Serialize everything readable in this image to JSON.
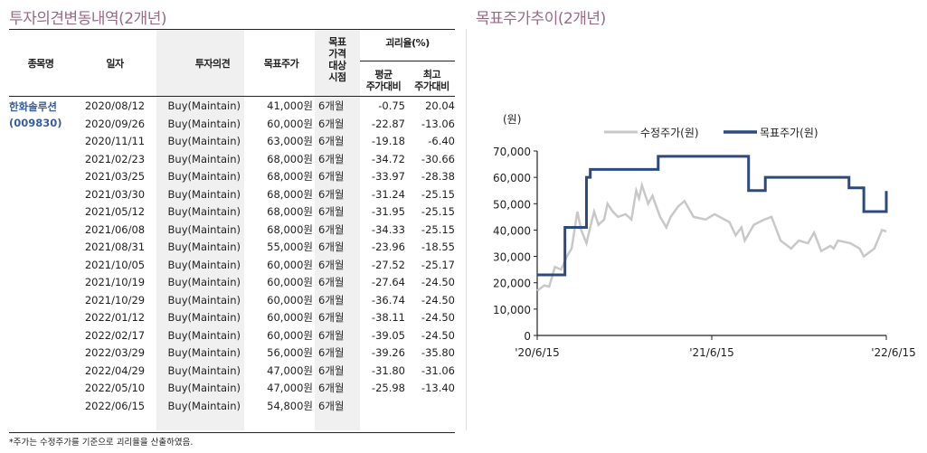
{
  "left": {
    "title": "투자의견변동내역(2개년)",
    "headers": {
      "stock": "종목명",
      "date": "일자",
      "opinion": "투자의견",
      "target": "목표주가",
      "horizon": "목표\n가격\n대상\n시점",
      "gap": "괴리율(%)",
      "avg": "평균\n주가대비",
      "max": "최고\n주가대비"
    },
    "stock_name": "한화솔루션",
    "stock_code": "(009830)",
    "rows": [
      [
        "2020/08/12",
        "Buy(Maintain)",
        "41,000원",
        "6개월",
        "-0.75",
        "20.04"
      ],
      [
        "2020/09/26",
        "Buy(Maintain)",
        "60,000원",
        "6개월",
        "-22.87",
        "-13.06"
      ],
      [
        "2020/11/11",
        "Buy(Maintain)",
        "63,000원",
        "6개월",
        "-19.18",
        "-6.40"
      ],
      [
        "2021/02/23",
        "Buy(Maintain)",
        "68,000원",
        "6개월",
        "-34.72",
        "-30.66"
      ],
      [
        "2021/03/25",
        "Buy(Maintain)",
        "68,000원",
        "6개월",
        "-33.97",
        "-28.38"
      ],
      [
        "2021/03/30",
        "Buy(Maintain)",
        "68,000원",
        "6개월",
        "-31.24",
        "-25.15"
      ],
      [
        "2021/05/12",
        "Buy(Maintain)",
        "68,000원",
        "6개월",
        "-31.95",
        "-25.15"
      ],
      [
        "2021/06/08",
        "Buy(Maintain)",
        "68,000원",
        "6개월",
        "-34.33",
        "-25.15"
      ],
      [
        "2021/08/31",
        "Buy(Maintain)",
        "55,000원",
        "6개월",
        "-23.96",
        "-18.55"
      ],
      [
        "2021/10/05",
        "Buy(Maintain)",
        "60,000원",
        "6개월",
        "-27.52",
        "-25.17"
      ],
      [
        "2021/10/19",
        "Buy(Maintain)",
        "60,000원",
        "6개월",
        "-27.64",
        "-24.50"
      ],
      [
        "2021/10/29",
        "Buy(Maintain)",
        "60,000원",
        "6개월",
        "-36.74",
        "-24.50"
      ],
      [
        "2022/01/12",
        "Buy(Maintain)",
        "60,000원",
        "6개월",
        "-38.11",
        "-24.50"
      ],
      [
        "2022/02/17",
        "Buy(Maintain)",
        "60,000원",
        "6개월",
        "-39.05",
        "-24.50"
      ],
      [
        "2022/03/29",
        "Buy(Maintain)",
        "56,000원",
        "6개월",
        "-39.26",
        "-35.80"
      ],
      [
        "2022/04/29",
        "Buy(Maintain)",
        "47,000원",
        "6개월",
        "-31.80",
        "-31.06"
      ],
      [
        "2022/05/10",
        "Buy(Maintain)",
        "47,000원",
        "6개월",
        "-25.98",
        "-13.40"
      ],
      [
        "2022/06/15",
        "Buy(Maintain)",
        "54,800원",
        "6개월",
        "",
        ""
      ]
    ],
    "footnote": "*주가는 수정주가를 기준으로 괴리율을 산출하였음."
  },
  "chart_data": {
    "type": "line",
    "title": "목표주가추이(2개년)",
    "ylabel": "(원)",
    "ylim": [
      0,
      70000
    ],
    "yticks": [
      "0",
      "10,000",
      "20,000",
      "30,000",
      "40,000",
      "50,000",
      "60,000",
      "70,000"
    ],
    "xticks": [
      {
        "day": 0,
        "label": "'20/6/15"
      },
      {
        "day": 365,
        "label": "'21/6/15"
      },
      {
        "day": 730,
        "label": "'22/6/15"
      }
    ],
    "x_unit": "days since 2020/6/15",
    "legend": "top",
    "series": [
      {
        "name": "수정주가(원)",
        "color": "#c8c8c8",
        "step": false,
        "points": [
          [
            0,
            17000
          ],
          [
            15,
            19000
          ],
          [
            25,
            18500
          ],
          [
            37,
            26000
          ],
          [
            50,
            25000
          ],
          [
            62,
            30000
          ],
          [
            72,
            33000
          ],
          [
            84,
            47000
          ],
          [
            92,
            40000
          ],
          [
            103,
            35000
          ],
          [
            112,
            42000
          ],
          [
            119,
            47000
          ],
          [
            128,
            42000
          ],
          [
            140,
            44000
          ],
          [
            147,
            50000
          ],
          [
            158,
            47000
          ],
          [
            169,
            45000
          ],
          [
            185,
            46000
          ],
          [
            197,
            44000
          ],
          [
            207,
            55000
          ],
          [
            213,
            52000
          ],
          [
            219,
            57000
          ],
          [
            232,
            50000
          ],
          [
            241,
            53000
          ],
          [
            257,
            45000
          ],
          [
            270,
            41000
          ],
          [
            279,
            45000
          ],
          [
            295,
            49000
          ],
          [
            308,
            51000
          ],
          [
            327,
            45000
          ],
          [
            352,
            44000
          ],
          [
            371,
            46000
          ],
          [
            402,
            43000
          ],
          [
            415,
            38000
          ],
          [
            427,
            41000
          ],
          [
            434,
            36000
          ],
          [
            453,
            42000
          ],
          [
            475,
            44000
          ],
          [
            490,
            45000
          ],
          [
            509,
            36000
          ],
          [
            531,
            33000
          ],
          [
            547,
            36000
          ],
          [
            566,
            35000
          ],
          [
            579,
            39000
          ],
          [
            594,
            32000
          ],
          [
            613,
            34000
          ],
          [
            620,
            33000
          ],
          [
            629,
            36000
          ],
          [
            655,
            35000
          ],
          [
            674,
            33000
          ],
          [
            683,
            30000
          ],
          [
            705,
            33000
          ],
          [
            721,
            40000
          ],
          [
            730,
            39500
          ]
        ]
      },
      {
        "name": "목표주가(원)",
        "color": "#2e4a7d",
        "step": true,
        "points": [
          [
            0,
            23000
          ],
          [
            58,
            41000
          ],
          [
            103,
            60000
          ],
          [
            110,
            60000
          ],
          [
            111,
            63000
          ],
          [
            149,
            63000
          ],
          [
            253,
            68000
          ],
          [
            442,
            55000
          ],
          [
            477,
            60000
          ],
          [
            652,
            56000
          ],
          [
            683,
            47000
          ],
          [
            729,
            47000
          ],
          [
            730,
            54800
          ]
        ]
      }
    ]
  }
}
